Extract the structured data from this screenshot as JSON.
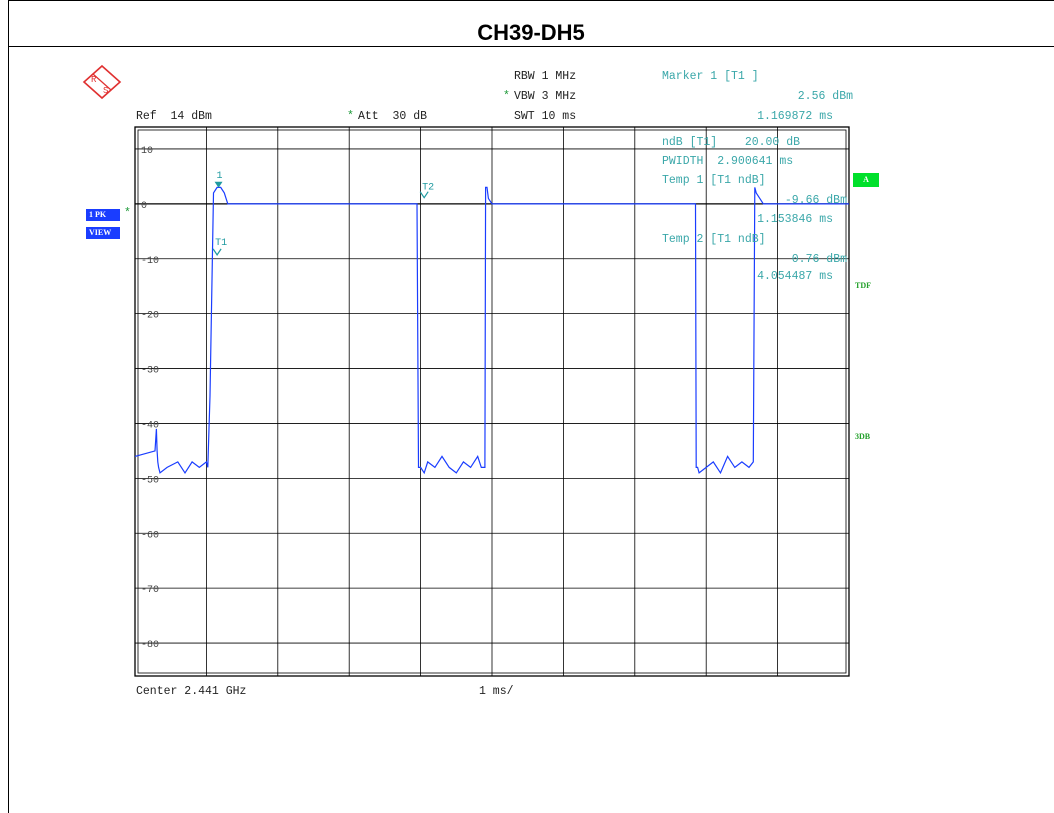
{
  "title": "CH39-DH5",
  "settings": {
    "rbw": "RBW 1 MHz",
    "vbw": "VBW 3 MHz",
    "swt": "SWT 10 ms",
    "ref": "Ref  14 dBm",
    "att": "Att  30 dB",
    "center": "Center 2.441 GHz",
    "span_per_div": "1 ms/"
  },
  "markers_panel": {
    "marker1_title": "Marker 1 [T1 ]",
    "marker1_level": "2.56 dBm",
    "marker1_time": "1.169872 ms",
    "ndb_line": "ndB [T1]    20.00 dB",
    "pwidth_line": "PWIDTH  2.900641 ms",
    "temp1_title": "Temp 1 [T1 ndB]",
    "temp1_level": "-9.66 dBm",
    "temp1_time": "1.153846 ms",
    "temp2_title": "Temp 2 [T1 ndB]",
    "temp2_level": "0.76 dBm",
    "temp2_time": "4.054487 ms"
  },
  "side_labels": {
    "trace": "1 PK",
    "view": "VIEW",
    "a_box": "A",
    "tdf": "TDF",
    "db3": "3DB"
  },
  "marker_labels": {
    "m1": "1",
    "t1": "T1",
    "t2": "T2"
  },
  "star_symbol": "*",
  "colors": {
    "trace": "#1a3dff",
    "marker": "#1f9aa0",
    "grid": "#000000",
    "accent_green": "#00e02b"
  },
  "chart_data": {
    "type": "line",
    "title": "CH39-DH5",
    "xlabel": "",
    "ylabel": "",
    "x_unit": "ms",
    "y_unit": "dBm",
    "xlim": [
      0,
      10
    ],
    "ylim": [
      -86,
      14
    ],
    "y_ticks": [
      10,
      0,
      -10,
      -20,
      -30,
      -40,
      -50,
      -60,
      -70,
      -80
    ],
    "y_tick_labels": [
      "10",
      "0",
      "-10",
      "-20",
      "-30",
      "-40",
      "-50",
      "-60",
      "-70",
      "-80"
    ],
    "grid": true,
    "series": [
      {
        "x": [
          0,
          0.28,
          0.3,
          0.31,
          0.32,
          0.33,
          0.35,
          0.45,
          0.6,
          0.7,
          0.8,
          0.9,
          1.0,
          1.02,
          1.05,
          1.1,
          1.15,
          1.2,
          1.25,
          1.3,
          1.4,
          1.5,
          1.7,
          2.0,
          2.5,
          3.0,
          3.5,
          3.9,
          3.95,
          3.97,
          4.0,
          4.05,
          4.1,
          4.2,
          4.3,
          4.4,
          4.5,
          4.6,
          4.7,
          4.8,
          4.85,
          4.9,
          4.91,
          4.93,
          4.95,
          5.0,
          5.1,
          5.3,
          5.5,
          6.0,
          6.5,
          7.0,
          7.5,
          7.8,
          7.85,
          7.86,
          7.88,
          7.9,
          8.0,
          8.1,
          8.2,
          8.3,
          8.4,
          8.5,
          8.6,
          8.66,
          8.68,
          8.7,
          8.75,
          8.8,
          8.9,
          9.0,
          9.2,
          9.5,
          10.0
        ],
        "y": [
          -46,
          -45,
          -41,
          -45,
          -47,
          -48,
          -49,
          -48,
          -47,
          -49,
          -47,
          -48,
          -47,
          -48,
          -35,
          2,
          3,
          3,
          2,
          0,
          0,
          0,
          0,
          0,
          0,
          0,
          0,
          0,
          0,
          -48,
          -48,
          -49,
          -47,
          -48,
          -46,
          -48,
          -49,
          -47,
          -48,
          -46,
          -48,
          -48,
          3,
          3,
          1,
          0,
          0,
          0,
          0,
          0,
          0,
          0,
          0,
          0,
          0,
          -48,
          -48,
          -49,
          -48,
          -47,
          -49,
          -46,
          -48,
          -47,
          -48,
          -47,
          3,
          2,
          1,
          0,
          0,
          0,
          0,
          0,
          0
        ]
      }
    ]
  }
}
